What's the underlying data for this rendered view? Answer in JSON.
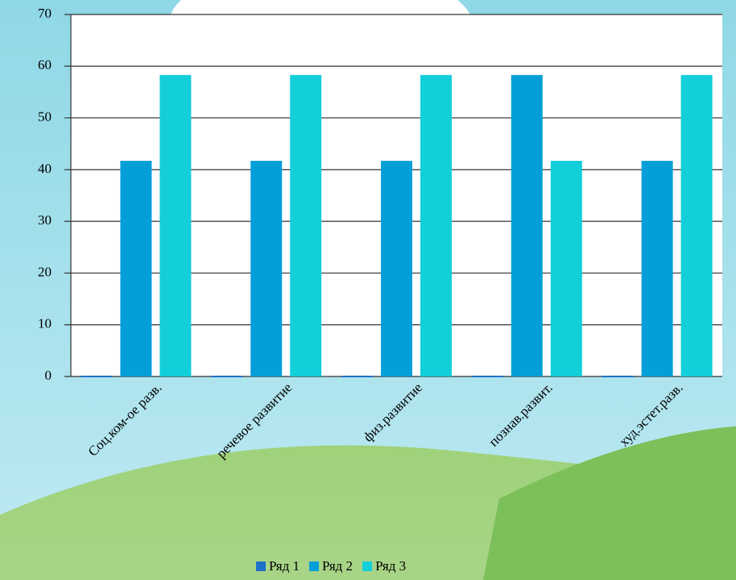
{
  "chart_data": {
    "type": "bar",
    "categories": [
      "Соц.ком-ое разв.",
      "речевое развитие",
      "физ.развитие",
      "познав.развит.",
      "худ.эстет.разв."
    ],
    "series": [
      {
        "name": "Ряд 1",
        "color": "#1e70c8",
        "values": [
          0,
          0,
          0,
          0,
          0
        ]
      },
      {
        "name": "Ряд 2",
        "color": "#049fd9",
        "values": [
          41.7,
          41.7,
          41.7,
          58.3,
          41.7
        ]
      },
      {
        "name": "Ряд 3",
        "color": "#12cfda",
        "values": [
          58.3,
          58.3,
          58.3,
          41.7,
          58.3
        ]
      }
    ],
    "ylim": [
      0,
      70
    ],
    "yticks": [
      0,
      10,
      20,
      30,
      40,
      50,
      60,
      70
    ],
    "grid": true,
    "legend": "bottom"
  }
}
